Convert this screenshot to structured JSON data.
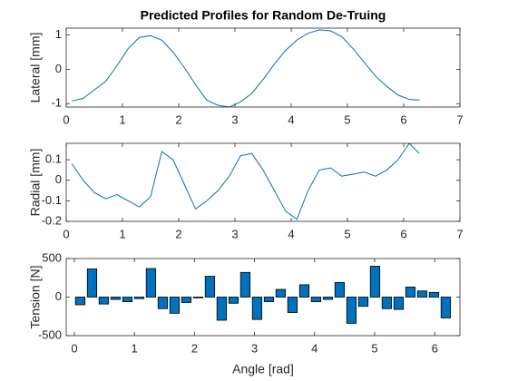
{
  "chart_data": [
    {
      "type": "line",
      "title": "Predicted Profiles for Random De-Truing",
      "ylabel": "Lateral [mm]",
      "color": "#0072bd",
      "x": [
        0.1,
        0.3,
        0.5,
        0.7,
        0.9,
        1.1,
        1.3,
        1.5,
        1.7,
        1.9,
        2.1,
        2.3,
        2.5,
        2.7,
        2.9,
        3.1,
        3.3,
        3.5,
        3.7,
        3.9,
        4.1,
        4.3,
        4.5,
        4.7,
        4.9,
        5.1,
        5.3,
        5.5,
        5.7,
        5.9,
        6.1,
        6.28
      ],
      "values": [
        -0.92,
        -0.85,
        -0.6,
        -0.35,
        0.1,
        0.6,
        0.93,
        0.98,
        0.85,
        0.5,
        0.05,
        -0.45,
        -0.9,
        -1.05,
        -1.1,
        -0.95,
        -0.7,
        -0.3,
        0.15,
        0.55,
        0.85,
        1.05,
        1.15,
        1.12,
        0.95,
        0.6,
        0.2,
        -0.2,
        -0.5,
        -0.75,
        -0.88,
        -0.9
      ],
      "xlim": [
        0,
        7
      ],
      "xticks": [
        0,
        1,
        2,
        3,
        4,
        5,
        6,
        7
      ],
      "ylim": [
        -1.1,
        1.2
      ],
      "yticks": [
        -1,
        0,
        1
      ]
    },
    {
      "type": "line",
      "ylabel": "Radial [mm]",
      "color": "#0072bd",
      "x": [
        0.1,
        0.3,
        0.5,
        0.7,
        0.9,
        1.1,
        1.3,
        1.5,
        1.7,
        1.9,
        2.1,
        2.3,
        2.5,
        2.7,
        2.9,
        3.1,
        3.3,
        3.5,
        3.7,
        3.9,
        4.1,
        4.3,
        4.5,
        4.7,
        4.9,
        5.1,
        5.3,
        5.5,
        5.7,
        5.9,
        6.1,
        6.28
      ],
      "values": [
        0.08,
        0.0,
        -0.06,
        -0.09,
        -0.07,
        -0.1,
        -0.13,
        -0.08,
        0.14,
        0.1,
        -0.02,
        -0.14,
        -0.1,
        -0.05,
        0.02,
        0.12,
        0.13,
        0.05,
        -0.05,
        -0.15,
        -0.19,
        -0.05,
        0.05,
        0.06,
        0.02,
        0.03,
        0.04,
        0.02,
        0.05,
        0.1,
        0.18,
        0.13
      ],
      "xlim": [
        0,
        7
      ],
      "xticks": [
        0,
        1,
        2,
        3,
        4,
        5,
        6,
        7
      ],
      "ylim": [
        -0.2,
        0.18
      ],
      "yticks": [
        -0.2,
        -0.1,
        0,
        0.1
      ]
    },
    {
      "type": "bar",
      "ylabel": "Tension [N]",
      "xlabel": "Angle [rad]",
      "color": "#0072bd",
      "x": [
        0.098,
        0.295,
        0.491,
        0.687,
        0.884,
        1.08,
        1.276,
        1.473,
        1.669,
        1.865,
        2.062,
        2.258,
        2.454,
        2.651,
        2.847,
        3.043,
        3.24,
        3.436,
        3.632,
        3.829,
        4.025,
        4.222,
        4.418,
        4.614,
        4.811,
        5.007,
        5.203,
        5.4,
        5.596,
        5.792,
        5.989,
        6.185
      ],
      "values": [
        -100,
        365,
        -90,
        -30,
        -60,
        -20,
        370,
        -150,
        -210,
        -70,
        -10,
        270,
        -300,
        -80,
        320,
        -290,
        -60,
        100,
        -200,
        160,
        -60,
        -30,
        190,
        -340,
        -120,
        400,
        -150,
        -160,
        130,
        80,
        60,
        -270
      ],
      "xlim": [
        -0.135,
        6.42
      ],
      "xticks": [
        0,
        1,
        2,
        3,
        4,
        5,
        6
      ],
      "ylim": [
        -500,
        500
      ],
      "yticks": [
        -500,
        0,
        500
      ]
    }
  ]
}
